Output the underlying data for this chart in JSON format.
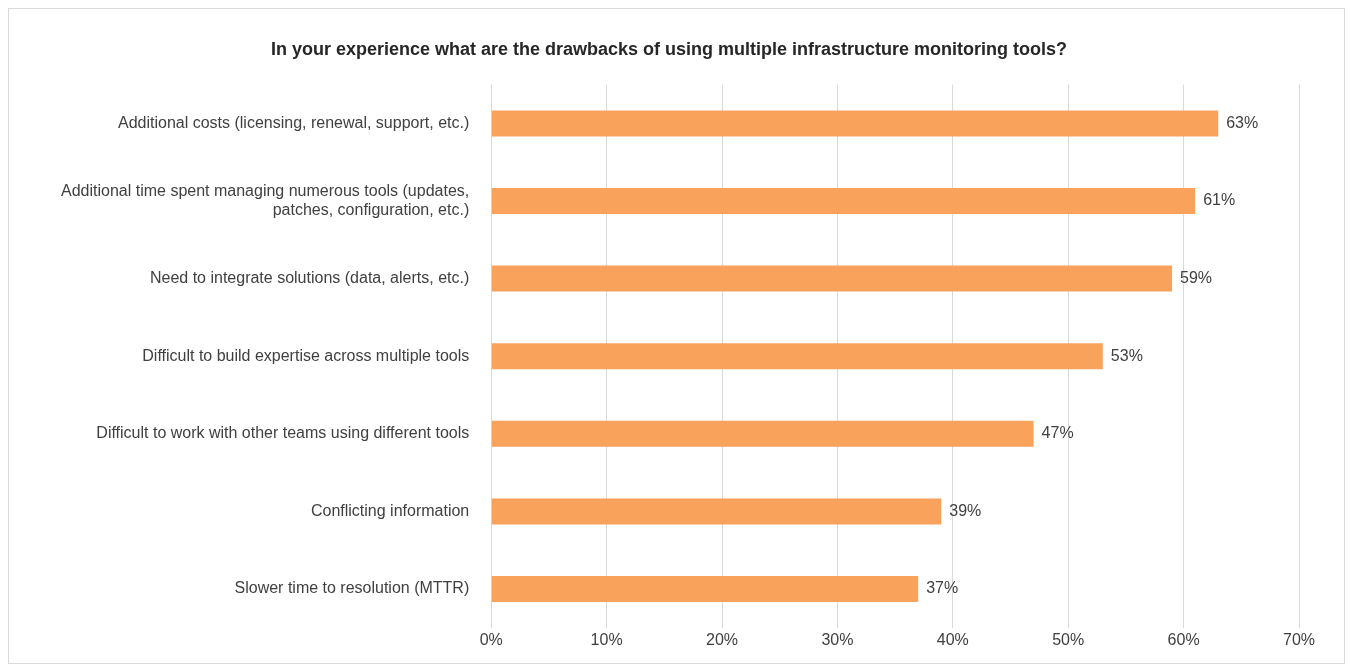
{
  "chart_data": {
    "type": "bar",
    "orientation": "horizontal",
    "title": "In your experience what are the drawbacks of using multiple infrastructure monitoring tools?",
    "categories": [
      "Additional costs (licensing, renewal, support, etc.)",
      "Additional time spent managing numerous tools (updates, patches, configuration, etc.)",
      "Need to integrate solutions (data, alerts, etc.)",
      "Difficult to build expertise across multiple tools",
      "Difficult to work with other teams using different tools",
      "Conflicting information",
      "Slower time to resolution (MTTR)"
    ],
    "values": [
      63,
      61,
      59,
      53,
      47,
      39,
      37
    ],
    "value_labels": [
      "63%",
      "61%",
      "59%",
      "53%",
      "47%",
      "39%",
      "37%"
    ],
    "color": "#f9a25b",
    "xlim": [
      0,
      70
    ],
    "xticks": [
      {
        "value": 0,
        "label": "0%"
      },
      {
        "value": 10,
        "label": "10%"
      },
      {
        "value": 20,
        "label": "20%"
      },
      {
        "value": 30,
        "label": "30%"
      },
      {
        "value": 40,
        "label": "40%"
      },
      {
        "value": 50,
        "label": "50%"
      },
      {
        "value": 60,
        "label": "60%"
      },
      {
        "value": 70,
        "label": "70%"
      }
    ],
    "grid": "x"
  }
}
